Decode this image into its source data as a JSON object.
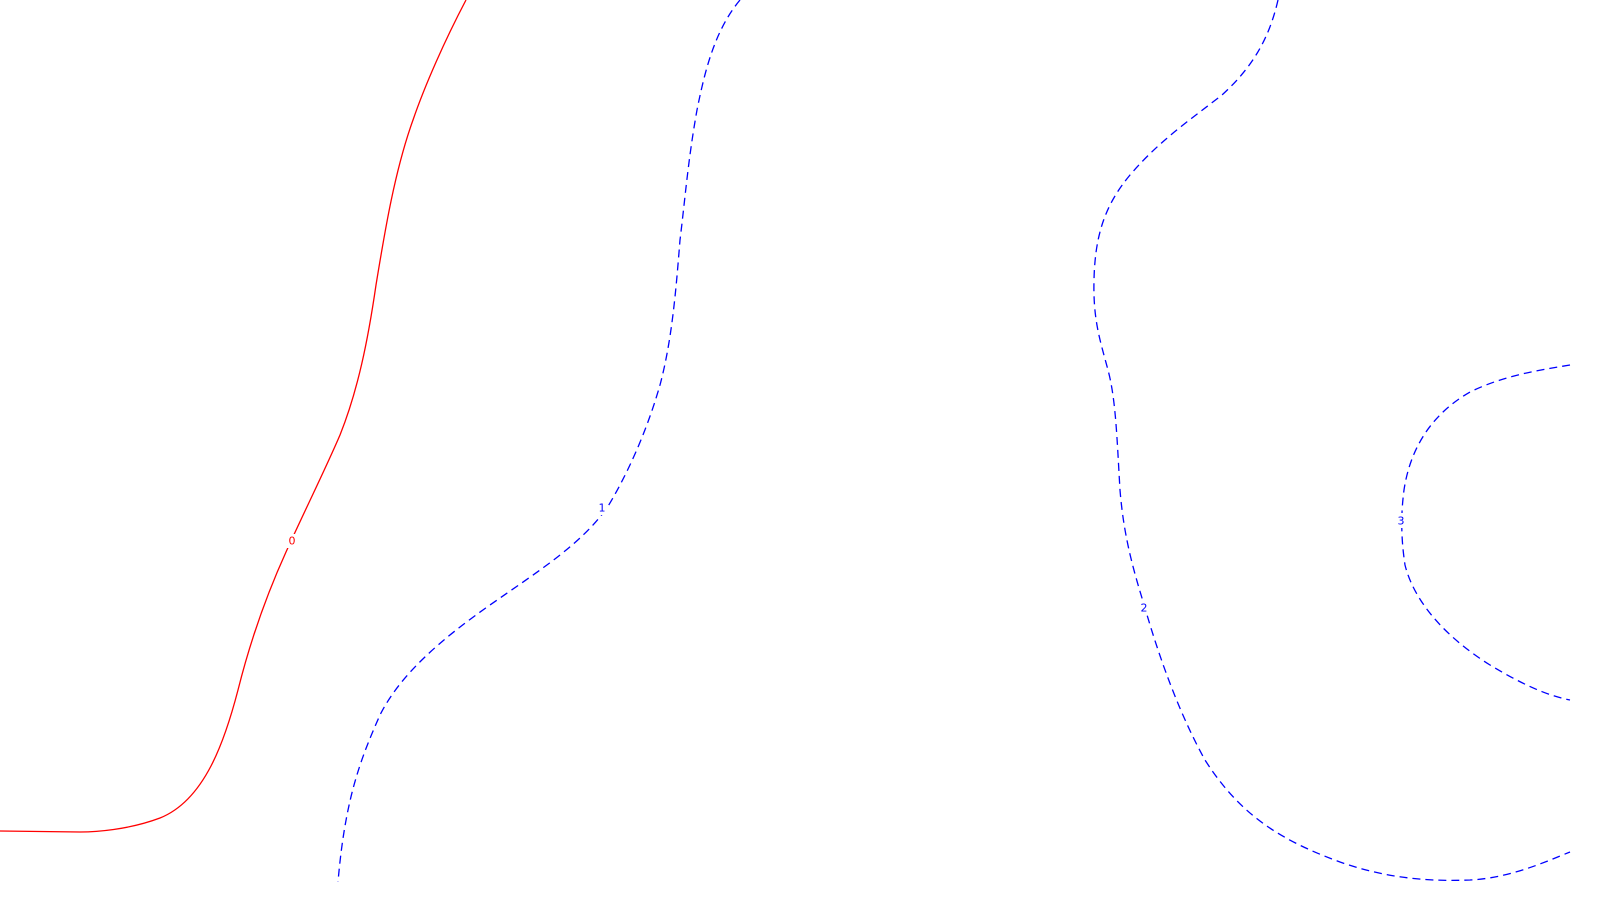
{
  "chart_data": {
    "type": "contour",
    "title": "",
    "xlabel": "",
    "ylabel": "",
    "colors": {
      "zero_level": "#ff0000",
      "positive_levels": "#0000ff",
      "background": "#ffffff"
    },
    "levels": [
      {
        "name": "level-0",
        "label": "0",
        "value": 0,
        "style": "solid",
        "color": "#ff0000"
      },
      {
        "name": "level-1",
        "label": "1",
        "value": 1,
        "style": "dashed",
        "color": "#0000ff"
      },
      {
        "name": "level-2",
        "label": "2",
        "value": 2,
        "style": "dashed",
        "color": "#0000ff"
      },
      {
        "name": "level-3",
        "label": "3",
        "value": 3,
        "style": "dashed",
        "color": "#0000ff"
      }
    ]
  }
}
